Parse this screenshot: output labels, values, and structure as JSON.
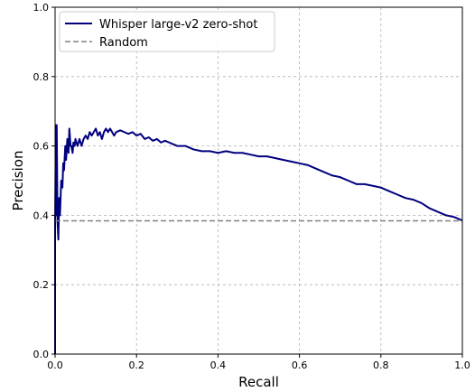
{
  "chart_data": {
    "type": "line",
    "xlabel": "Recall",
    "ylabel": "Precision",
    "xlim": [
      0,
      1
    ],
    "ylim": [
      0,
      1
    ],
    "x_ticks": [
      "0.0",
      "0.2",
      "0.4",
      "0.6",
      "0.8",
      "1.0"
    ],
    "y_ticks": [
      "0.0",
      "0.2",
      "0.4",
      "0.6",
      "0.8",
      "1.0"
    ],
    "grid": true,
    "grid_style": "dashed",
    "legend_position": "top-left",
    "series": [
      {
        "name": "Whisper large-v2 zero-shot",
        "color": "#00007f",
        "style": "solid",
        "x": [
          0.0,
          0.0,
          0.002,
          0.003,
          0.004,
          0.006,
          0.008,
          0.01,
          0.012,
          0.015,
          0.018,
          0.02,
          0.022,
          0.025,
          0.027,
          0.03,
          0.033,
          0.035,
          0.038,
          0.04,
          0.043,
          0.045,
          0.048,
          0.05,
          0.055,
          0.06,
          0.065,
          0.07,
          0.075,
          0.08,
          0.085,
          0.09,
          0.095,
          0.1,
          0.105,
          0.11,
          0.115,
          0.12,
          0.125,
          0.13,
          0.135,
          0.14,
          0.145,
          0.15,
          0.16,
          0.17,
          0.18,
          0.19,
          0.2,
          0.21,
          0.22,
          0.23,
          0.24,
          0.25,
          0.26,
          0.27,
          0.28,
          0.29,
          0.3,
          0.32,
          0.34,
          0.36,
          0.38,
          0.4,
          0.42,
          0.44,
          0.46,
          0.48,
          0.5,
          0.52,
          0.54,
          0.56,
          0.58,
          0.6,
          0.62,
          0.64,
          0.66,
          0.68,
          0.7,
          0.72,
          0.74,
          0.76,
          0.78,
          0.8,
          0.82,
          0.84,
          0.86,
          0.88,
          0.9,
          0.92,
          0.94,
          0.96,
          0.98,
          1.0
        ],
        "y": [
          0.0,
          0.38,
          0.66,
          0.4,
          0.66,
          0.38,
          0.33,
          0.45,
          0.4,
          0.5,
          0.48,
          0.55,
          0.53,
          0.6,
          0.56,
          0.62,
          0.58,
          0.65,
          0.6,
          0.6,
          0.58,
          0.61,
          0.6,
          0.62,
          0.6,
          0.62,
          0.6,
          0.62,
          0.63,
          0.62,
          0.64,
          0.63,
          0.64,
          0.65,
          0.63,
          0.64,
          0.62,
          0.64,
          0.65,
          0.64,
          0.65,
          0.64,
          0.63,
          0.64,
          0.645,
          0.64,
          0.635,
          0.64,
          0.63,
          0.635,
          0.62,
          0.625,
          0.615,
          0.62,
          0.61,
          0.615,
          0.61,
          0.605,
          0.6,
          0.6,
          0.59,
          0.585,
          0.585,
          0.58,
          0.585,
          0.58,
          0.58,
          0.575,
          0.57,
          0.57,
          0.565,
          0.56,
          0.555,
          0.55,
          0.545,
          0.535,
          0.525,
          0.515,
          0.51,
          0.5,
          0.49,
          0.49,
          0.485,
          0.48,
          0.47,
          0.46,
          0.45,
          0.445,
          0.435,
          0.42,
          0.41,
          0.4,
          0.395,
          0.385
        ]
      },
      {
        "name": "Random",
        "color": "#808080",
        "style": "dashed",
        "x": [
          0,
          1
        ],
        "y": [
          0.384,
          0.384
        ]
      }
    ]
  }
}
